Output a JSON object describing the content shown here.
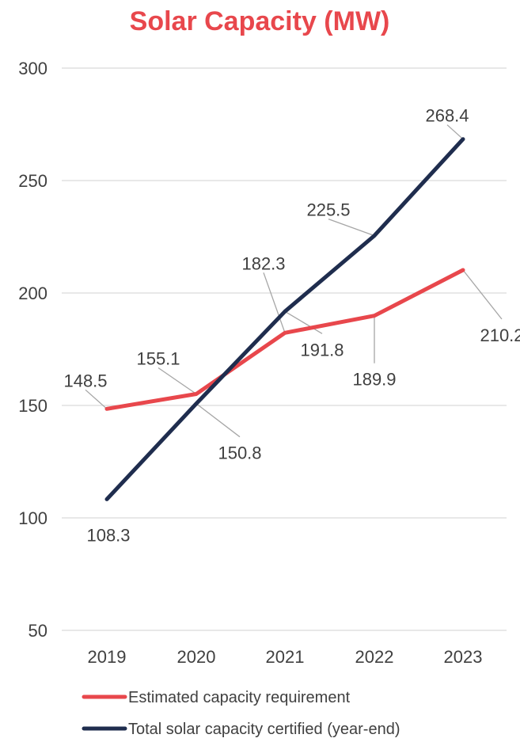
{
  "chart_data": {
    "type": "line",
    "title": "Solar Capacity (MW)",
    "title_color": "#E8474C",
    "categories": [
      "2019",
      "2020",
      "2021",
      "2022",
      "2023"
    ],
    "ylim": [
      50,
      300
    ],
    "yticks": [
      50,
      100,
      150,
      200,
      250,
      300
    ],
    "grid": true,
    "legend_position": "bottom",
    "series": [
      {
        "name": "Estimated capacity requirement",
        "color": "#E8474C",
        "values": [
          148.5,
          155.1,
          182.3,
          189.9,
          210.2
        ]
      },
      {
        "name": "Total solar capacity certified (year-end)",
        "color": "#1F2D4E",
        "values": [
          108.3,
          150.8,
          191.8,
          225.5,
          268.4
        ]
      }
    ]
  }
}
